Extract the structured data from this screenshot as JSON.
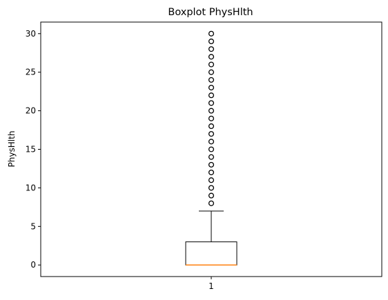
{
  "chart_data": {
    "type": "boxplot",
    "title": "Boxplot PhysHlth",
    "xlabel": "",
    "ylabel": "PhysHlth",
    "categories": [
      "1"
    ],
    "ylim": [
      -1.5,
      31.5
    ],
    "yticks": [
      0,
      5,
      10,
      15,
      20,
      25,
      30
    ],
    "box": {
      "category": "1",
      "whisker_low": 0,
      "q1": 0,
      "median": 0,
      "q3": 3,
      "whisker_high": 7
    },
    "outliers": [
      8,
      9,
      10,
      11,
      12,
      13,
      14,
      15,
      16,
      17,
      18,
      19,
      20,
      21,
      22,
      23,
      24,
      25,
      26,
      27,
      28,
      29,
      30
    ],
    "grid": false,
    "colors": {
      "box": "#000000",
      "median": "#ff7f0e",
      "outlier_edge": "#000000"
    }
  }
}
